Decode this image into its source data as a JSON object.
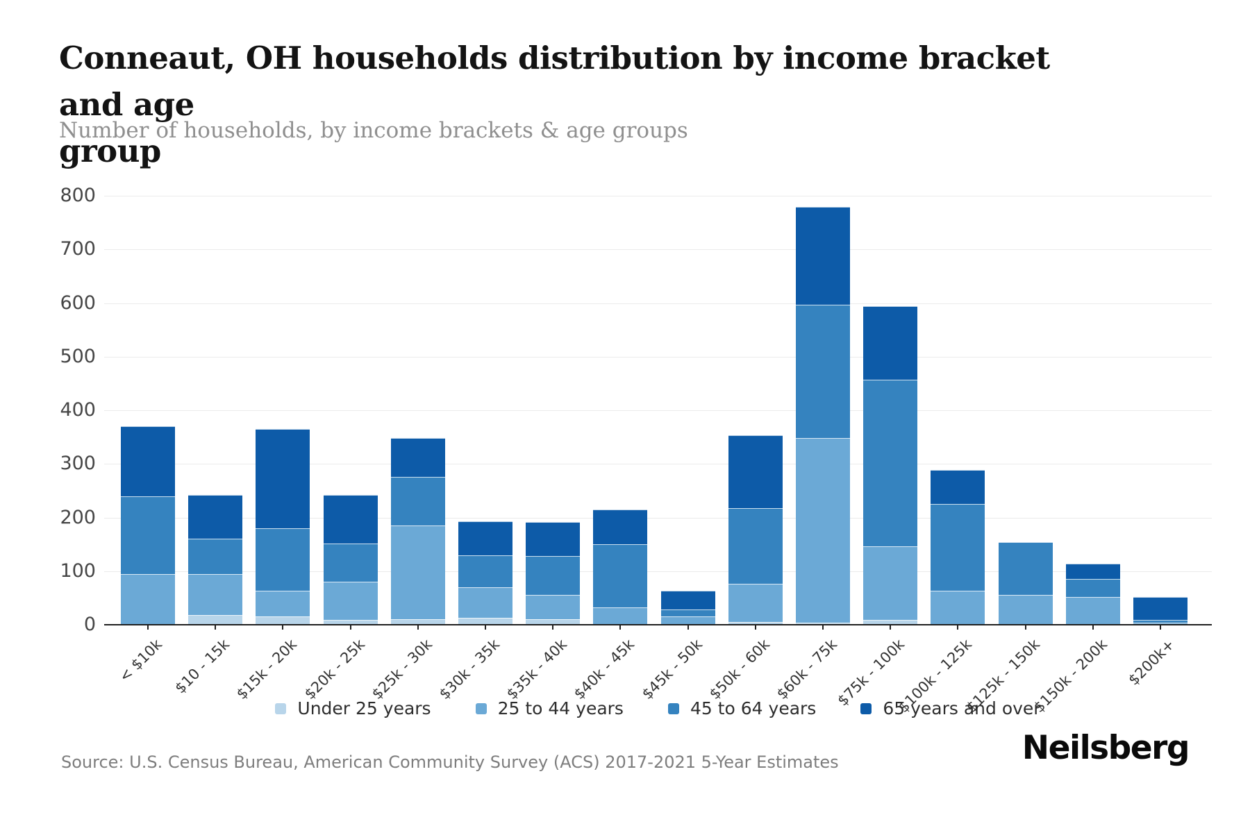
{
  "title_line1": "Conneaut, OH households distribution by income bracket and age",
  "title_line2": "group",
  "subtitle": "Number of households, by income brackets & age groups",
  "source": "Source: U.S. Census Bureau, American Community Survey (ACS) 2017-2021 5-Year Estimates",
  "logo_text": "Neilsberg",
  "colors": {
    "under_25": "#b8d5ea",
    "age_25_44": "#6ba9d6",
    "age_45_64": "#3583bf",
    "age_65_over": "#0d5ba8",
    "gridline": "#ebebeb",
    "axis": "#1f1f1f",
    "background": "#ffffff"
  },
  "chart_data": {
    "type": "bar",
    "stacked": true,
    "title": "Conneaut, OH households distribution by income bracket and age group",
    "subtitle": "Number of households, by income brackets & age groups",
    "xlabel": "",
    "ylabel": "",
    "ylim": [
      0,
      800
    ],
    "yticks": [
      0,
      100,
      200,
      300,
      400,
      500,
      600,
      700,
      800
    ],
    "grid": true,
    "legend_position": "bottom",
    "categories": [
      "< $10k",
      "$10 - 15k",
      "$15k - 20k",
      "$20k - 25k",
      "$25k - 30k",
      "$30k - 35k",
      "$35k - 40k",
      "$40k - 45k",
      "$45k - 50k",
      "$50k - 60k",
      "$60k - 75k",
      "$75k - 100k",
      "$100k - 125k",
      "$125k - 150k",
      "$150k - 200k",
      "$200k+"
    ],
    "series": [
      {
        "name": "Under 25 years",
        "color": "#b8d5ea",
        "values": [
          0,
          18,
          15,
          9,
          10,
          13,
          11,
          0,
          0,
          5,
          4,
          9,
          0,
          0,
          0,
          0
        ]
      },
      {
        "name": "25 to 44 years",
        "color": "#6ba9d6",
        "values": [
          95,
          77,
          48,
          71,
          175,
          57,
          45,
          32,
          15,
          72,
          344,
          137,
          63,
          56,
          52,
          4
        ]
      },
      {
        "name": "45 to 64 years",
        "color": "#3583bf",
        "values": [
          145,
          65,
          117,
          72,
          91,
          59,
          72,
          118,
          13,
          141,
          249,
          311,
          162,
          98,
          34,
          5
        ]
      },
      {
        "name": "65 years and over",
        "color": "#0d5ba8",
        "values": [
          130,
          82,
          185,
          90,
          72,
          64,
          64,
          65,
          35,
          135,
          182,
          137,
          64,
          0,
          28,
          43
        ]
      }
    ],
    "totals": [
      370,
      242,
      365,
      242,
      348,
      193,
      192,
      215,
      63,
      353,
      779,
      594,
      289,
      154,
      114,
      52
    ]
  }
}
